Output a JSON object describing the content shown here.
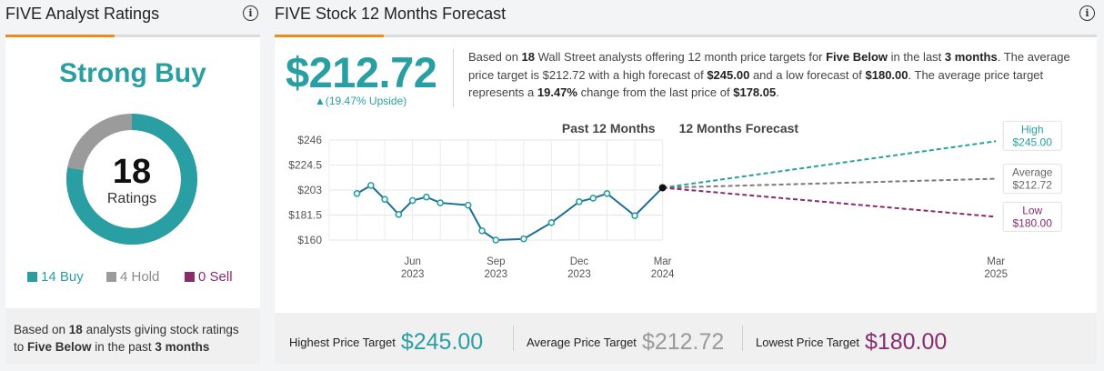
{
  "ticker": "FIVE",
  "ratings_panel": {
    "title": "FIVE Analyst Ratings",
    "consensus": "Strong Buy",
    "total": "18",
    "total_label": "Ratings",
    "legend": [
      {
        "label": "14 Buy",
        "count": 14,
        "color": "#2a9fa3"
      },
      {
        "label": "4 Hold",
        "count": 4,
        "color": "#9b9b9b"
      },
      {
        "label": "0 Sell",
        "count": 0,
        "color": "#8a2b6d"
      }
    ],
    "summary": {
      "t1": "Based on ",
      "b1": "18",
      "t2": " analysts giving stock ratings to ",
      "b2": "Five Below",
      "t3": " in the past ",
      "b3": "3 months"
    }
  },
  "forecast_panel": {
    "title": "FIVE Stock 12 Months Forecast",
    "price": "$212.72",
    "upside": "▲(19.47% Upside)",
    "desc": {
      "a": "Based on ",
      "b": "18",
      "c": " Wall Street analysts offering 12 month price targets for ",
      "d": "Five Below",
      "e": " in the last ",
      "f": "3 months",
      "g": ". The average price target is $212.72 with a high forecast of ",
      "h": "$245.00",
      "i": " and a low forecast of ",
      "j": "$180.00",
      "k": ". The average price target represents a ",
      "l": "19.47%",
      "m": " change from the last price of ",
      "n": "$178.05",
      "o": "."
    },
    "footer": {
      "high_label": "Highest Price Target",
      "high_value": "$245.00",
      "avg_label": "Average Price Target",
      "avg_value": "$212.72",
      "low_label": "Lowest Price Target",
      "low_value": "$180.00"
    }
  },
  "chart_data": {
    "type": "line",
    "header_past": "Past 12 Months",
    "header_forecast": "12 Months Forecast",
    "y_ticks": [
      "$246",
      "$224.5",
      "$203",
      "$181.5",
      "$160"
    ],
    "y_tick_values": [
      246,
      224.5,
      203,
      181.5,
      160
    ],
    "ylim": [
      160,
      246
    ],
    "x_ticks": [
      {
        "month": "Jun",
        "year": "2023",
        "t": 4
      },
      {
        "month": "Sep",
        "year": "2023",
        "t": 7
      },
      {
        "month": "Dec",
        "year": "2023",
        "t": 10
      },
      {
        "month": "Mar",
        "year": "2024",
        "t": 13
      },
      {
        "month": "Mar",
        "year": "2025",
        "t": 25
      }
    ],
    "series": [
      {
        "name": "",
        "t": [
          2,
          2.5,
          3,
          3.5,
          4,
          4.5,
          5,
          6,
          6.5,
          7,
          8,
          9,
          10,
          10.5,
          11,
          12,
          13
        ],
        "values": [
          200,
          207,
          195,
          182,
          194,
          197,
          192,
          190,
          168,
          160,
          161,
          175,
          193,
          196,
          200,
          181,
          205
        ]
      }
    ],
    "forecast": {
      "start_t": 13,
      "start_value": 205,
      "end_t": 25,
      "high": {
        "label": "High",
        "value_label": "$245.00",
        "value": 245,
        "color": "#2a9fa3"
      },
      "average": {
        "label": "Average",
        "value_label": "$212.72",
        "value": 212.72,
        "color": "#7a7a7a"
      },
      "low": {
        "label": "Low",
        "value_label": "$180.00",
        "value": 180,
        "color": "#8a2b6d"
      }
    },
    "line_color": "#1f6e9c",
    "grid": true
  }
}
